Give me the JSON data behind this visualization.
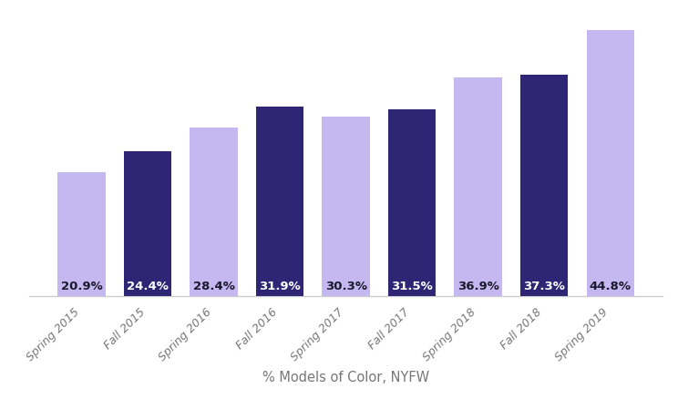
{
  "categories": [
    "Spring 2015",
    "Fall 2015",
    "Spring 2016",
    "Fall 2016",
    "Spring 2017",
    "Fall 2017",
    "Spring 2018",
    "Fall 2018",
    "Spring 2019"
  ],
  "values": [
    20.9,
    24.4,
    28.4,
    31.9,
    30.3,
    31.5,
    36.9,
    37.3,
    44.8
  ],
  "bar_colors": [
    "#c5b8f0",
    "#2e2575",
    "#c5b8f0",
    "#2e2575",
    "#c5b8f0",
    "#2e2575",
    "#c5b8f0",
    "#2e2575",
    "#c5b8f0"
  ],
  "label_color": "#ffffff",
  "label_color_dark": "#1a1a2e",
  "xlabel": "% Models of Color, NYFW",
  "xlabel_fontsize": 10.5,
  "tick_label_fontsize": 9,
  "value_label_fontsize": 9.5,
  "background_color": "#ffffff",
  "ylim": [
    0,
    47.5
  ],
  "bar_width": 0.72,
  "spine_color": "#cccccc",
  "tick_color": "#777777"
}
